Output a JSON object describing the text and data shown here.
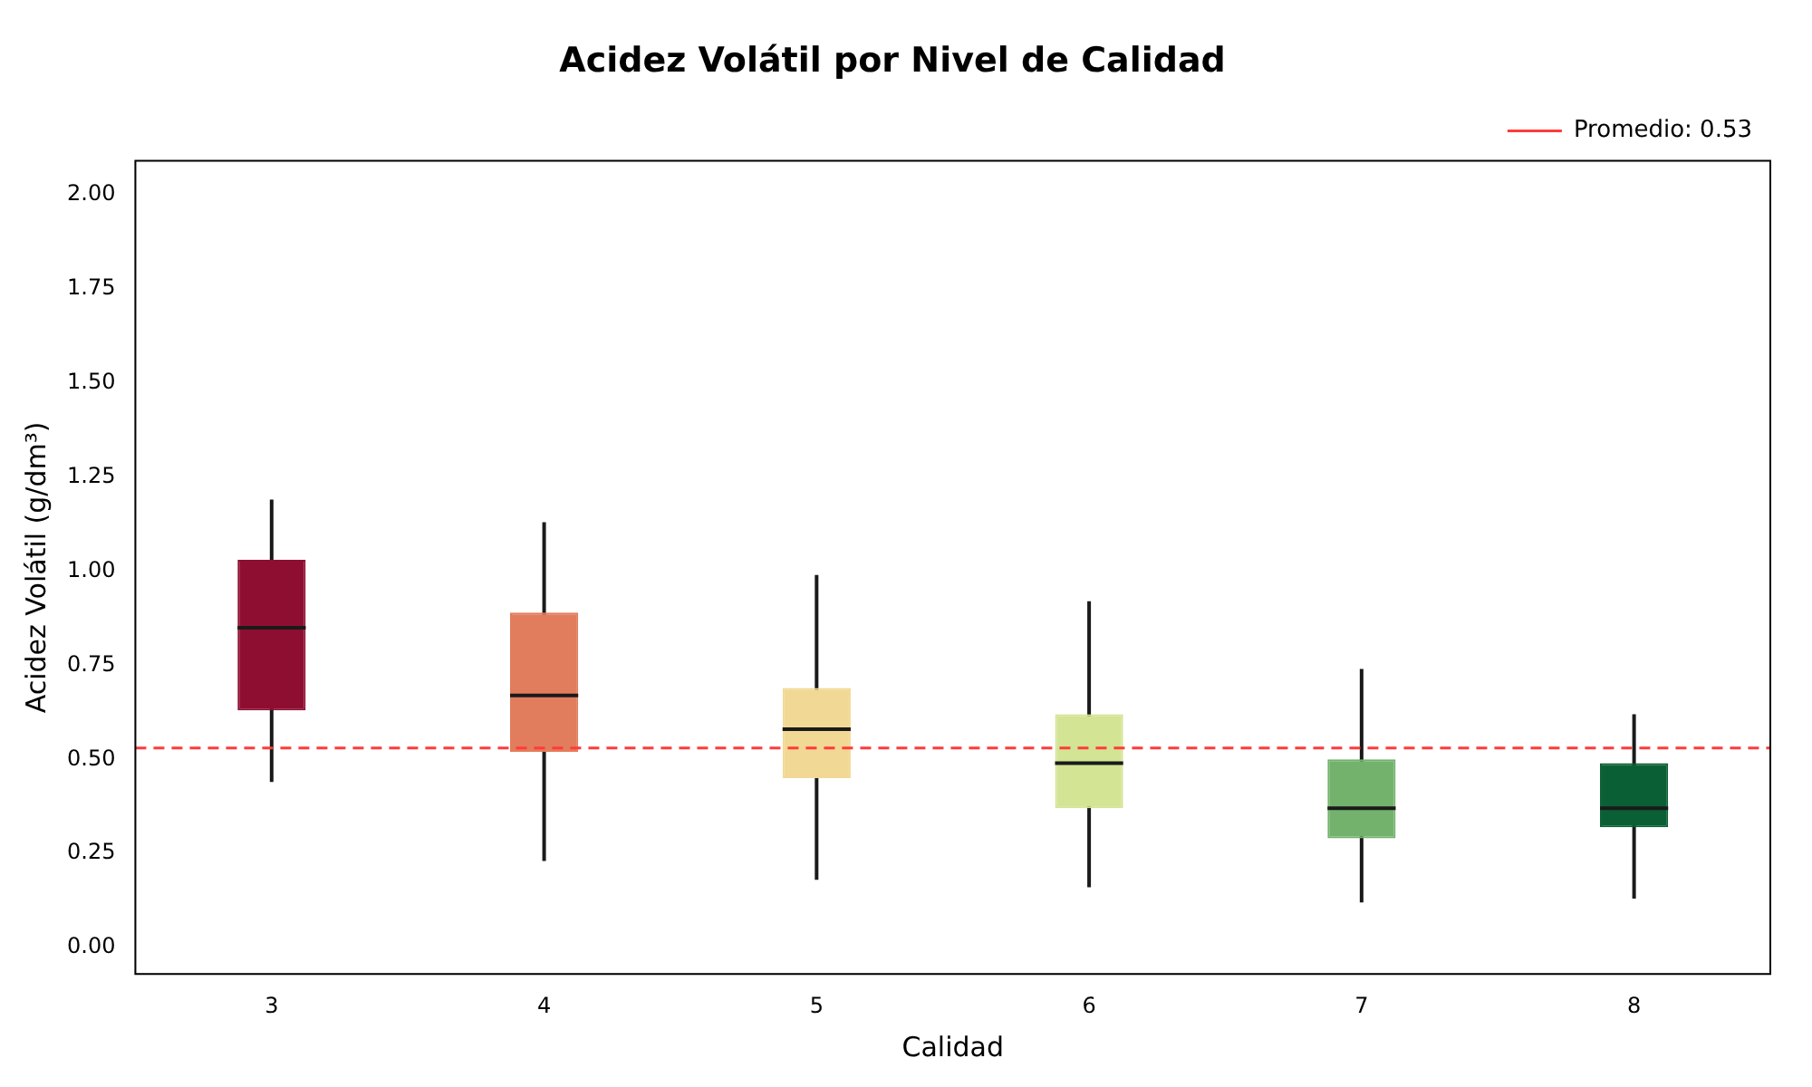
{
  "chart_data": {
    "type": "box",
    "title": "Acidez Volátil por Nivel de Calidad",
    "xlabel": "Calidad",
    "ylabel": "Acidez Volátil (g/dm³)",
    "categories": [
      "3",
      "4",
      "5",
      "6",
      "7",
      "8"
    ],
    "colors": [
      "#8e0e31",
      "#e17d5c",
      "#f1d894",
      "#d3e494",
      "#73b26d",
      "#0b5f35"
    ],
    "boxes": [
      {
        "low": 0.44,
        "q1": 0.63,
        "median": 0.85,
        "q3": 1.03,
        "high": 1.19
      },
      {
        "low": 0.23,
        "q1": 0.52,
        "median": 0.67,
        "q3": 0.89,
        "high": 1.13
      },
      {
        "low": 0.18,
        "q1": 0.45,
        "median": 0.58,
        "q3": 0.69,
        "high": 0.99
      },
      {
        "low": 0.16,
        "q1": 0.37,
        "median": 0.49,
        "q3": 0.62,
        "high": 0.92
      },
      {
        "low": 0.12,
        "q1": 0.29,
        "median": 0.37,
        "q3": 0.5,
        "high": 0.74
      },
      {
        "low": 0.13,
        "q1": 0.32,
        "median": 0.37,
        "q3": 0.49,
        "high": 0.62
      }
    ],
    "ylim": [
      -0.07,
      2.09
    ],
    "yticks": [
      {
        "value": 0,
        "label": "0.00"
      },
      {
        "value": 0.25,
        "label": "0.25"
      },
      {
        "value": 0.5,
        "label": "0.50"
      },
      {
        "value": 0.75,
        "label": "0.75"
      },
      {
        "value": 1,
        "label": "1.00"
      },
      {
        "value": 1.25,
        "label": "1.25"
      },
      {
        "value": 1.5,
        "label": "1.50"
      },
      {
        "value": 1.75,
        "label": "1.75"
      },
      {
        "value": 2,
        "label": "2.00"
      }
    ],
    "ref_lines": [
      {
        "axis": "y",
        "value": 0.53,
        "label": "Promedio: 0.53",
        "color": "#ff3b3b",
        "line_style": "dashed"
      }
    ],
    "legend": "top right",
    "grid": false
  }
}
